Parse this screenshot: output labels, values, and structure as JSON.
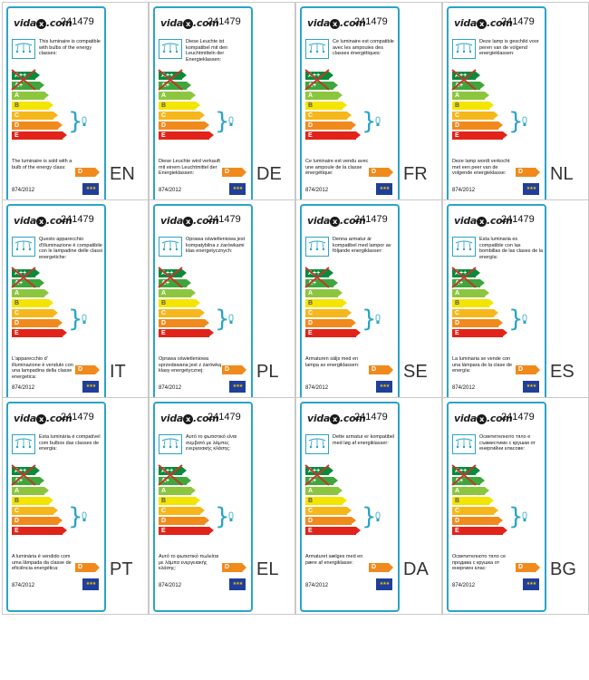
{
  "brand": {
    "name": "vida",
    "x": "x",
    "domain": ".com"
  },
  "product_code": "241479",
  "regulation": "874/2012",
  "badge": "D",
  "eu_stars": "★★★",
  "energy_classes": [
    {
      "label": "A++",
      "color": "#0a8a3a"
    },
    {
      "label": "A+",
      "color": "#3ea63a"
    },
    {
      "label": "A",
      "color": "#8cc63f"
    },
    {
      "label": "B",
      "color": "#f3e500"
    },
    {
      "label": "C",
      "color": "#f5b71b"
    },
    {
      "label": "D",
      "color": "#f08a1c"
    },
    {
      "label": "E",
      "color": "#e2231a"
    }
  ],
  "labels": [
    {
      "lang": "EN",
      "desc": "This luminaire is compatible with bulbs of the energy classes:",
      "sold": "The luminaire is sold with a bulb of the energy class:"
    },
    {
      "lang": "DE",
      "desc": "Diese Leuchte ist kompatibel mit den Leuchtmitteln der Energieklassen:",
      "sold": "Diese Leuchte wird verkauft mit einem Leuchtmittel der Energieklassen:"
    },
    {
      "lang": "FR",
      "desc": "Ce luminaire est compatible avec les ampoules des classes énergétiques:",
      "sold": "Ce luminaire est vendu avec une ampoule de la classe énergétique:"
    },
    {
      "lang": "NL",
      "desc": "Deze lamp is geschikt voor peren van de volgend energieklassen:",
      "sold": "Deze lamp wordt verkocht met een peer van de volgende energieklasse:"
    },
    {
      "lang": "IT",
      "desc": "Questo apparecchio d'illuminazione è compatibile con le lampadine delle classi energetiche:",
      "sold": "L'apparecchio d' illuminazione è venduto con una lampadina della classe energetica:"
    },
    {
      "lang": "PL",
      "desc": "Oprawa oświetleniowa jest kompatybilna z żarówkami klas energetycznych:",
      "sold": "Oprawa oświetleniowa sprzedawana jest z żarówką klasy energetycznej:"
    },
    {
      "lang": "SE",
      "desc": "Denna armatur är kompatibel med lampor av följande energiklasser:",
      "sold": "Armaturen säljs med en lampa av energiklassen:"
    },
    {
      "lang": "ES",
      "desc": "Esta luminaria es compatible con las bombillas de las clases de la energía:",
      "sold": "La luminaria se vende con una lámpara de la clase de energía:"
    },
    {
      "lang": "PT",
      "desc": "Esta luminária é compatível com bulbos das classes de energia:",
      "sold": "A luminária é vendido com uma lâmpada da classe de eficiência energética:"
    },
    {
      "lang": "EL",
      "desc": "Αυτό το φωτιστικό είναι συμβατό με λάμπες ενεργειακής κλάσης:",
      "sold": "Αυτό το φωτιστικό πωλείται με λάμπα ενεργειακής κλάσης:"
    },
    {
      "lang": "DA",
      "desc": "Dette armatur er kompatibel med løg af energiklasser:",
      "sold": "Armaturet sælges med en pære af energiklasse:"
    },
    {
      "lang": "BG",
      "desc": "Осветителното тяло е съвместимо с крушки от енергийни класове:",
      "sold": "Осветителното тяло се продава с крушка от енергиен клас:"
    }
  ]
}
